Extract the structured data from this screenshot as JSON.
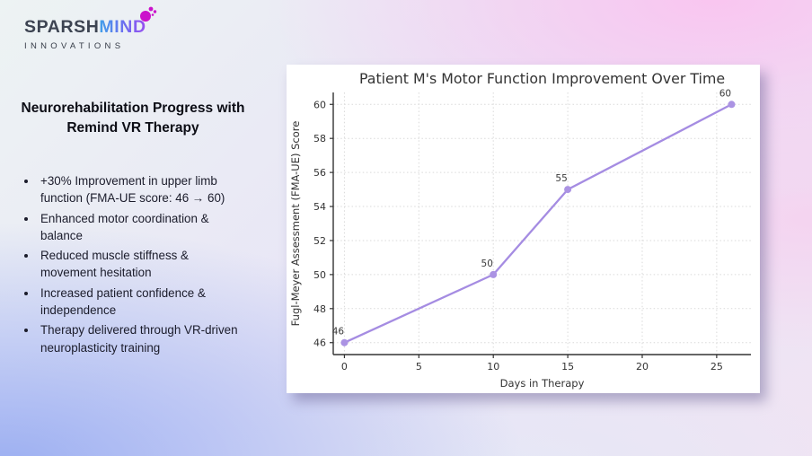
{
  "brand": {
    "name_primary": "SPARSH",
    "name_secondary": "MIND",
    "subtitle": "INNOVATIONS",
    "splash_color": "#cb12cb",
    "mind_gradient": [
      "#3fa0e9",
      "#9a4ef0"
    ]
  },
  "left_panel": {
    "heading": "Neurorehabilitation Progress with Remind VR Therapy",
    "bullets": [
      "+30% Improvement in upper limb function (FMA-UE score: 46 → 60)",
      "Enhanced motor coordination & balance",
      "Reduced muscle stiffness & movement hesitation",
      "Increased patient confidence & independence",
      "Therapy delivered through VR-driven neuroplasticity training"
    ]
  },
  "chart_data": {
    "type": "line",
    "title": "Patient M's Motor Function Improvement Over Time",
    "xlabel": "Days in Therapy",
    "ylabel": "Fugl-Meyer Assessment (FMA-UE) Score",
    "x": [
      0,
      10,
      15,
      26
    ],
    "y": [
      46,
      50,
      55,
      60
    ],
    "point_labels": [
      "46",
      "50",
      "55",
      "60"
    ],
    "xticks": [
      0,
      5,
      10,
      15,
      20,
      25
    ],
    "yticks": [
      46,
      48,
      50,
      52,
      54,
      56,
      58,
      60
    ],
    "xlim": [
      -0.75,
      27.3
    ],
    "ylim": [
      45.3,
      60.7
    ],
    "grid": true,
    "legend": "none",
    "line_color": "#a58ce2",
    "marker_color": "#ab93e3"
  }
}
